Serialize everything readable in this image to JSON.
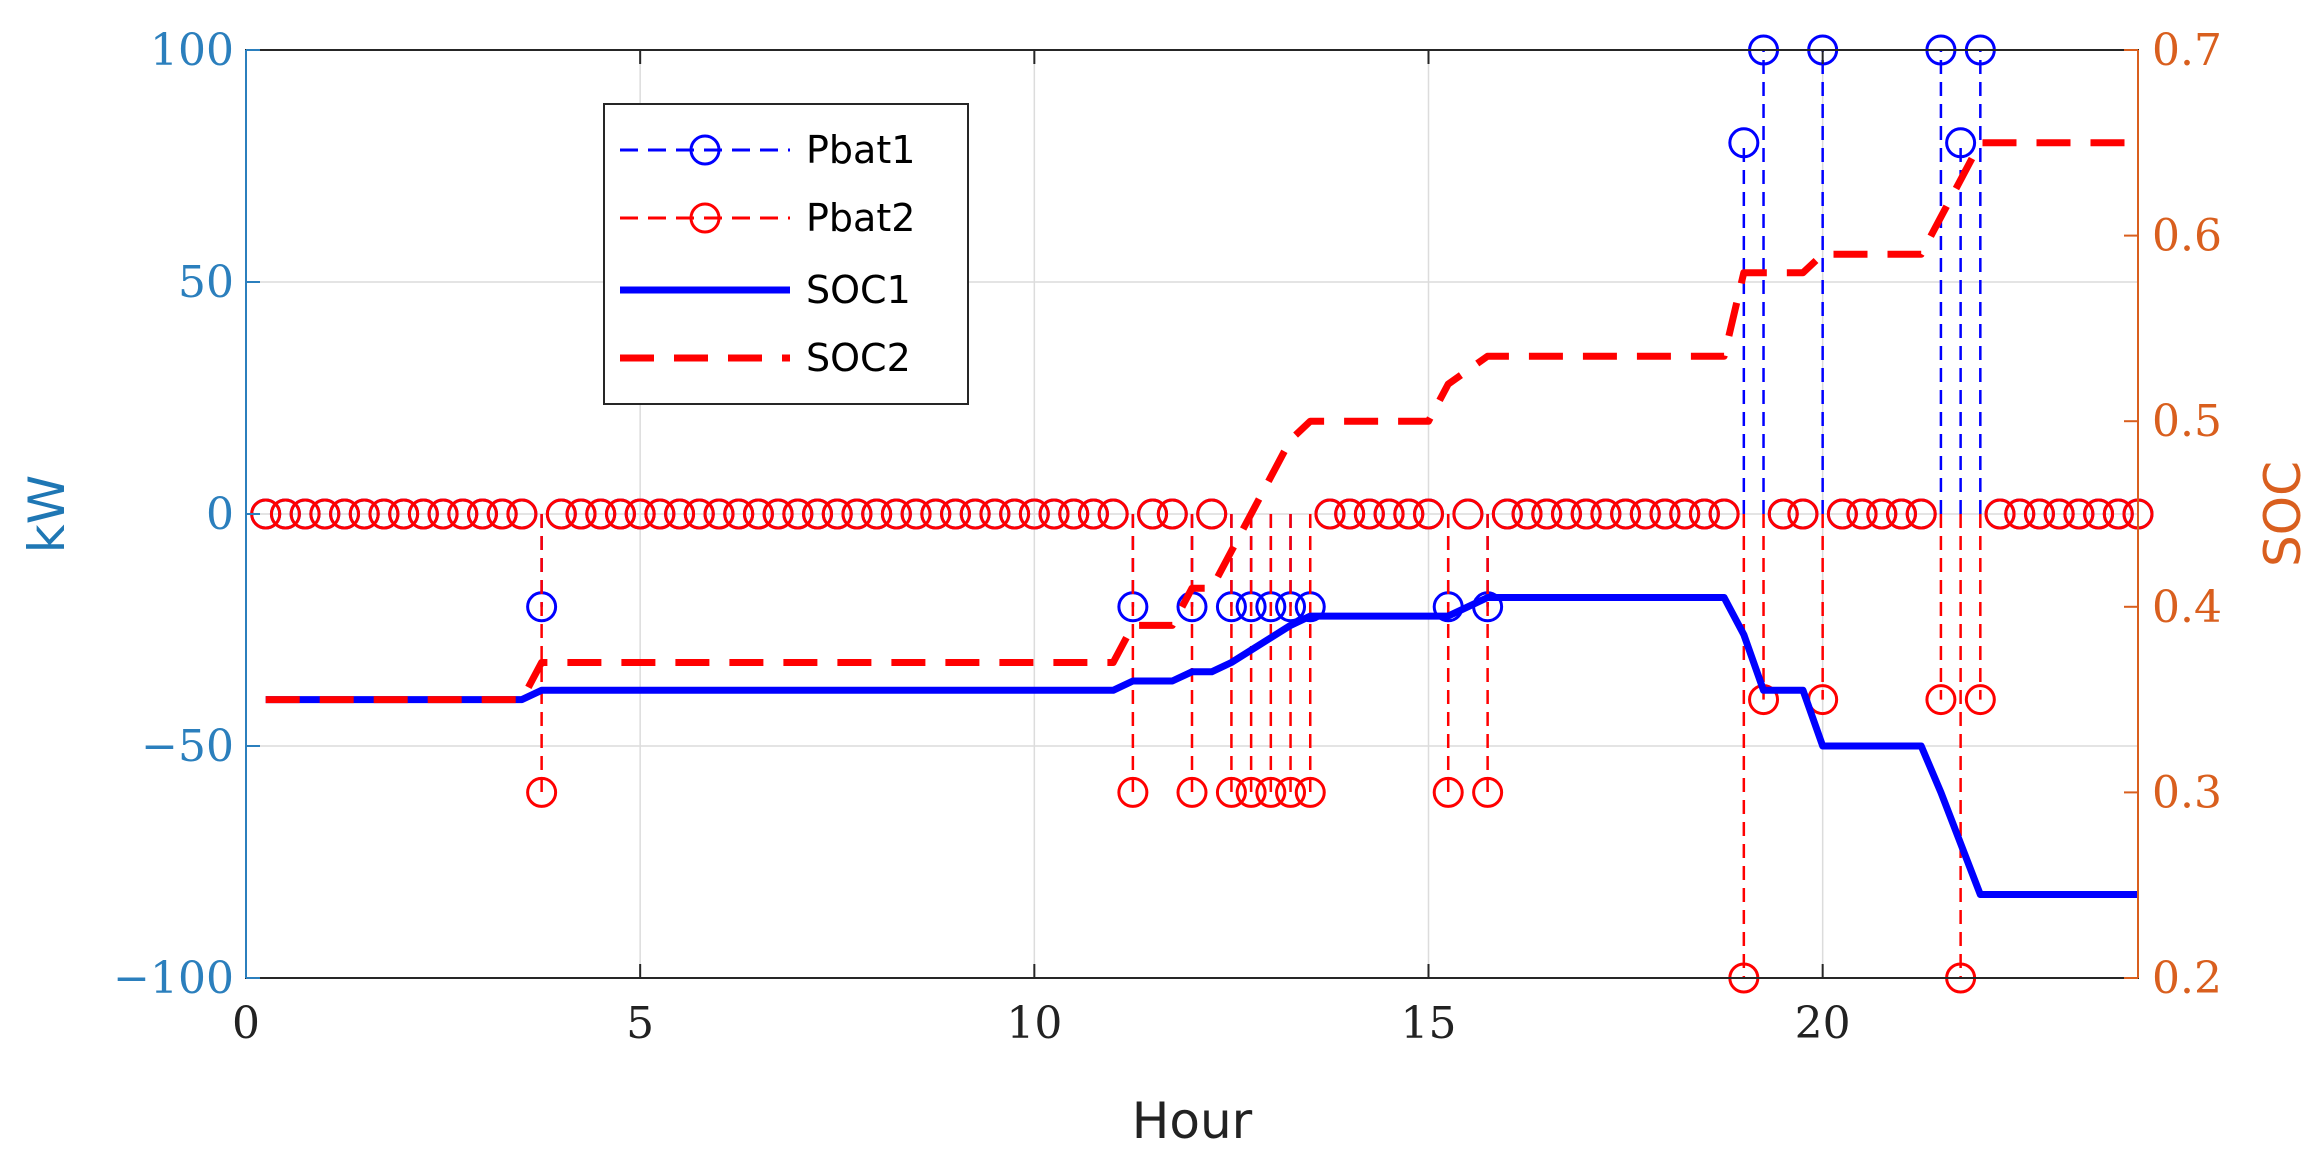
{
  "chart_data": {
    "type": "line",
    "title": "",
    "xlabel": "Hour",
    "ylabel_left": "kW",
    "ylabel_right": "SOC",
    "xlim": [
      0,
      24
    ],
    "ylim_left": [
      -100,
      100
    ],
    "ylim_right": [
      0.2,
      0.7
    ],
    "x_ticks": [
      0,
      5,
      10,
      15,
      20
    ],
    "y_left_ticks": [
      -100,
      -50,
      0,
      50,
      100
    ],
    "y_left_tick_labels": [
      "−100",
      "−50",
      "0",
      "50",
      "100"
    ],
    "y_right_ticks": [
      0.2,
      0.3,
      0.4,
      0.5,
      0.6,
      0.7
    ],
    "grid": true,
    "legend": {
      "placement": "top-left",
      "entries": [
        "Pbat1",
        "Pbat2",
        "SOC1",
        "SOC2"
      ]
    },
    "colors": {
      "blue": "#0000ff",
      "red": "#ff0000",
      "left_axis": "#2b7fbd",
      "right_axis": "#d95f1e"
    },
    "step": 0.25,
    "series": [
      {
        "name": "Pbat1",
        "axis": "left",
        "style": "dashed-stem-circle",
        "color": "#0000ff",
        "nonzero": [
          [
            3.75,
            -20
          ],
          [
            11.25,
            -20
          ],
          [
            12,
            -20
          ],
          [
            12.5,
            -20
          ],
          [
            12.75,
            -20
          ],
          [
            13,
            -20
          ],
          [
            13.25,
            -20
          ],
          [
            13.5,
            -20
          ],
          [
            15.25,
            -20
          ],
          [
            15.75,
            -20
          ],
          [
            19,
            80
          ],
          [
            19.25,
            100
          ],
          [
            20,
            100
          ],
          [
            21.5,
            100
          ],
          [
            21.75,
            80
          ],
          [
            22,
            100
          ]
        ]
      },
      {
        "name": "Pbat2",
        "axis": "left",
        "style": "dashed-stem-circle",
        "color": "#ff0000",
        "nonzero": [
          [
            3.75,
            -60
          ],
          [
            11.25,
            -60
          ],
          [
            12,
            -60
          ],
          [
            12.5,
            -60
          ],
          [
            12.75,
            -60
          ],
          [
            13,
            -60
          ],
          [
            13.25,
            -60
          ],
          [
            13.5,
            -60
          ],
          [
            15.25,
            -60
          ],
          [
            15.75,
            -60
          ],
          [
            19,
            -100
          ],
          [
            19.25,
            -40
          ],
          [
            20,
            -40
          ],
          [
            21.5,
            -40
          ],
          [
            21.75,
            -100
          ],
          [
            22,
            -40
          ]
        ]
      },
      {
        "name": "SOC1",
        "axis": "right",
        "style": "solid",
        "color": "#0000ff",
        "points": [
          [
            0.25,
            0.35
          ],
          [
            3.5,
            0.35
          ],
          [
            3.75,
            0.355
          ],
          [
            11,
            0.355
          ],
          [
            11.25,
            0.36
          ],
          [
            11.75,
            0.36
          ],
          [
            12,
            0.365
          ],
          [
            12.25,
            0.365
          ],
          [
            12.5,
            0.37
          ],
          [
            13.25,
            0.39
          ],
          [
            13.5,
            0.395
          ],
          [
            15.25,
            0.395
          ],
          [
            15.5,
            0.4
          ],
          [
            15.75,
            0.405
          ],
          [
            18.75,
            0.405
          ],
          [
            19,
            0.385
          ],
          [
            19.25,
            0.355
          ],
          [
            19.75,
            0.355
          ],
          [
            20,
            0.325
          ],
          [
            21.25,
            0.325
          ],
          [
            21.5,
            0.3
          ],
          [
            22,
            0.245
          ],
          [
            24,
            0.245
          ]
        ]
      },
      {
        "name": "SOC2",
        "axis": "right",
        "style": "dashed",
        "color": "#ff0000",
        "points": [
          [
            0.25,
            0.35
          ],
          [
            3.5,
            0.35
          ],
          [
            3.75,
            0.37
          ],
          [
            11,
            0.37
          ],
          [
            11.25,
            0.39
          ],
          [
            11.75,
            0.39
          ],
          [
            12,
            0.41
          ],
          [
            12.25,
            0.41
          ],
          [
            12.5,
            0.43
          ],
          [
            13.25,
            0.49
          ],
          [
            13.5,
            0.5
          ],
          [
            15,
            0.5
          ],
          [
            15.25,
            0.52
          ],
          [
            15.75,
            0.535
          ],
          [
            18.75,
            0.535
          ],
          [
            19,
            0.58
          ],
          [
            19.75,
            0.58
          ],
          [
            20,
            0.59
          ],
          [
            21.25,
            0.59
          ],
          [
            21.5,
            0.61
          ],
          [
            22,
            0.65
          ],
          [
            24,
            0.65
          ]
        ]
      }
    ]
  }
}
